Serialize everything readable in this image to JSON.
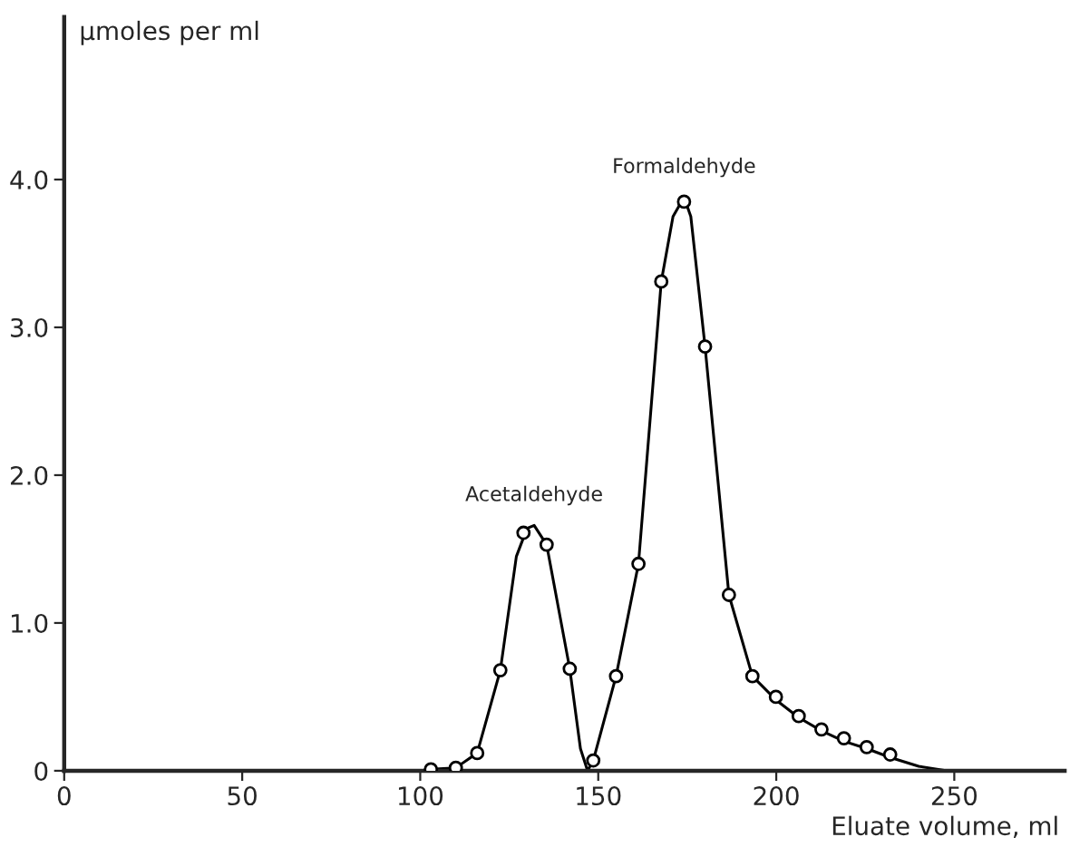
{
  "chart_data": {
    "type": "scatter",
    "xlabel": "Eluate volume, ml",
    "ylabel": "µmoles per ml",
    "xlim": [
      0,
      281
    ],
    "ylim": [
      0,
      5.1
    ],
    "xticks": [
      0,
      50,
      100,
      150,
      200,
      250
    ],
    "yticks": [
      {
        "value": 0,
        "label": "0"
      },
      {
        "value": 1,
        "label": "1.0"
      },
      {
        "value": 2,
        "label": "2.0"
      },
      {
        "value": 3,
        "label": "3.0"
      },
      {
        "value": 4,
        "label": "4.0"
      }
    ],
    "grid": false,
    "line_style": "solid",
    "series": [
      {
        "type": "line",
        "color": "#000000",
        "x": [
          100,
          103,
          110,
          116,
          122.5,
          127,
          130,
          132,
          135.5,
          142,
          145,
          147,
          148.6,
          155,
          161.3,
          167.7,
          171,
          174.1,
          176,
          180,
          186.7,
          193.3,
          199.9,
          206.3,
          212.7,
          219,
          225.4,
          232,
          240,
          248
        ],
        "values": [
          0,
          0.01,
          0.02,
          0.12,
          0.68,
          1.45,
          1.64,
          1.66,
          1.53,
          0.69,
          0.15,
          0,
          0.07,
          0.64,
          1.4,
          3.31,
          3.75,
          3.88,
          3.75,
          2.87,
          1.19,
          0.64,
          0.48,
          0.36,
          0.27,
          0.2,
          0.15,
          0.09,
          0.03,
          0
        ]
      },
      {
        "color": "#000000",
        "x": [
          103,
          110,
          116,
          122.5,
          129,
          135.5,
          142,
          148.6,
          155,
          161.3,
          167.7,
          174.1,
          180,
          186.7,
          193.3,
          199.9,
          206.3,
          212.7,
          219,
          225.4,
          232
        ],
        "values": [
          0.01,
          0.02,
          0.12,
          0.68,
          1.61,
          1.53,
          0.69,
          0.07,
          0.64,
          1.4,
          3.31,
          3.85,
          2.87,
          1.19,
          0.64,
          0.5,
          0.37,
          0.28,
          0.22,
          0.16,
          0.11
        ]
      }
    ],
    "annotations": [
      {
        "text": "Acetaldehyde",
        "x": 132,
        "y": 1.66
      },
      {
        "text": "Formaldehyde",
        "x": 174.1,
        "y": 3.88
      }
    ]
  }
}
